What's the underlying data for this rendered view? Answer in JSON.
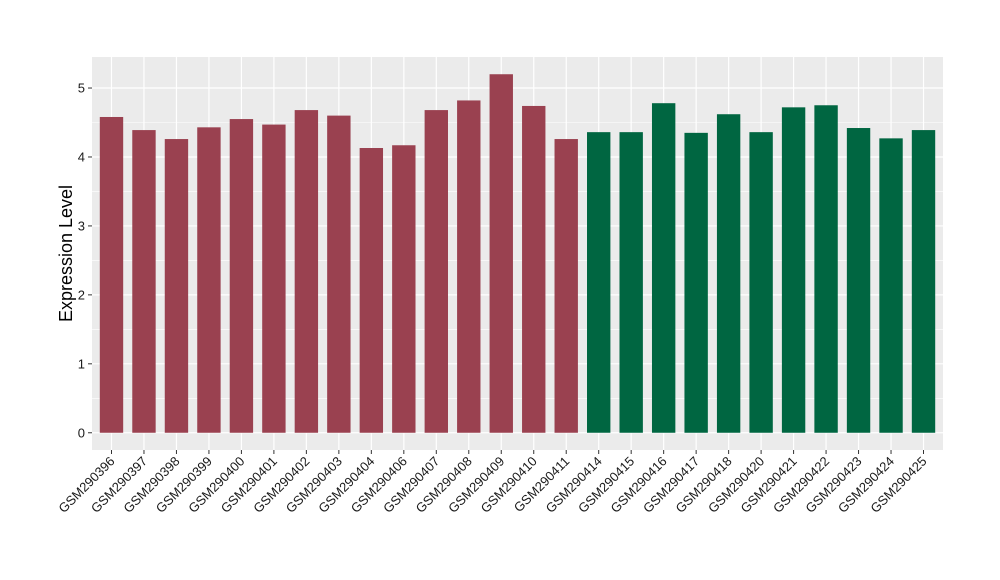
{
  "chart_data": {
    "type": "bar",
    "ylabel": "Expression Level",
    "ylim": [
      -0.25,
      5.45
    ],
    "yticks": [
      0,
      1,
      2,
      3,
      4,
      5
    ],
    "grid": true,
    "panel_background": "#EBEBEB",
    "grid_color": "#FFFFFF",
    "categories": [
      "GSM290396",
      "GSM290397",
      "GSM290398",
      "GSM290399",
      "GSM290400",
      "GSM290401",
      "GSM290402",
      "GSM290403",
      "GSM290404",
      "GSM290406",
      "GSM290407",
      "GSM290408",
      "GSM290409",
      "GSM290410",
      "GSM290411",
      "GSM290414",
      "GSM290415",
      "GSM290416",
      "GSM290417",
      "GSM290418",
      "GSM290420",
      "GSM290421",
      "GSM290422",
      "GSM290423",
      "GSM290424",
      "GSM290425"
    ],
    "values": [
      4.58,
      4.39,
      4.26,
      4.43,
      4.55,
      4.47,
      4.68,
      4.6,
      4.13,
      4.17,
      4.68,
      4.82,
      5.2,
      4.74,
      4.26,
      4.36,
      4.36,
      4.78,
      4.35,
      4.62,
      4.36,
      4.72,
      4.75,
      4.42,
      4.27,
      4.39
    ],
    "groups": [
      0,
      0,
      0,
      0,
      0,
      0,
      0,
      0,
      0,
      0,
      0,
      0,
      0,
      0,
      0,
      1,
      1,
      1,
      1,
      1,
      1,
      1,
      1,
      1,
      1,
      1
    ],
    "group_colors": [
      "#9A4150",
      "#006641"
    ]
  }
}
